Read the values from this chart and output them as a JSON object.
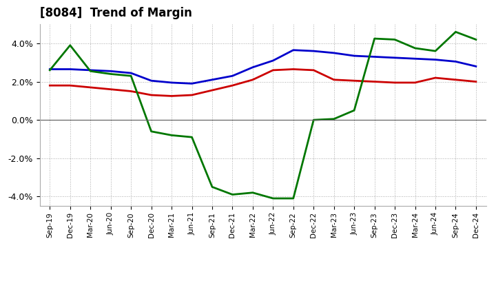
{
  "title": "[8084]  Trend of Margin",
  "x_labels": [
    "Sep-19",
    "Dec-19",
    "Mar-20",
    "Jun-20",
    "Sep-20",
    "Dec-20",
    "Mar-21",
    "Jun-21",
    "Sep-21",
    "Dec-21",
    "Mar-22",
    "Jun-22",
    "Sep-22",
    "Dec-22",
    "Mar-23",
    "Jun-23",
    "Sep-23",
    "Dec-23",
    "Mar-24",
    "Jun-24",
    "Sep-24",
    "Dec-24"
  ],
  "ordinary_income": [
    2.65,
    2.65,
    2.6,
    2.55,
    2.45,
    2.05,
    1.95,
    1.9,
    2.1,
    2.3,
    2.75,
    3.1,
    3.65,
    3.6,
    3.5,
    3.35,
    3.3,
    3.25,
    3.2,
    3.15,
    3.05,
    2.8
  ],
  "net_income": [
    1.8,
    1.8,
    1.7,
    1.6,
    1.5,
    1.3,
    1.25,
    1.3,
    1.55,
    1.8,
    2.1,
    2.6,
    2.65,
    2.6,
    2.1,
    2.05,
    2.0,
    1.95,
    1.95,
    2.2,
    2.1,
    2.0
  ],
  "operating_cashflow": [
    2.6,
    3.9,
    2.55,
    2.4,
    2.3,
    -0.6,
    -0.8,
    -0.9,
    -3.5,
    -3.9,
    -3.8,
    -4.1,
    -4.1,
    0.0,
    0.05,
    0.5,
    4.25,
    4.2,
    3.75,
    3.6,
    4.6,
    4.2
  ],
  "colors": {
    "ordinary_income": "#0000cc",
    "net_income": "#cc0000",
    "operating_cashflow": "#007700"
  },
  "ylim": [
    -4.5,
    5.0
  ],
  "yticks": [
    -4.0,
    -2.0,
    0.0,
    2.0,
    4.0
  ],
  "background_color": "#ffffff",
  "grid_color": "#aaaaaa",
  "title_fontsize": 12
}
